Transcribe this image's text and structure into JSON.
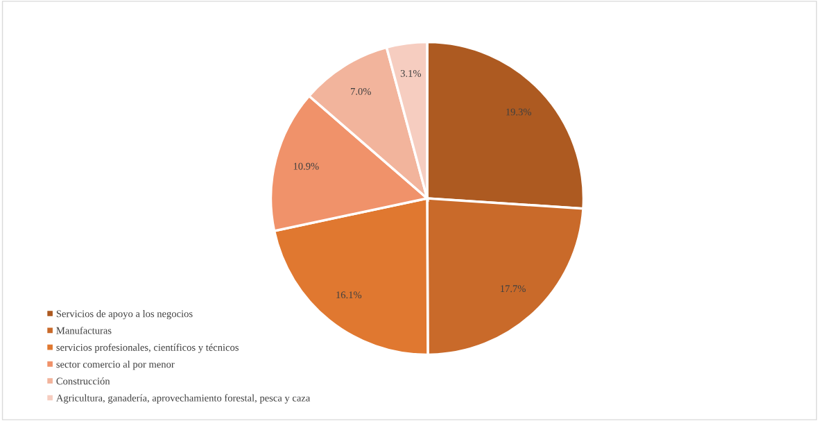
{
  "chart_data": {
    "type": "pie",
    "categories": [
      "Servicios de apoyo a los negocios",
      "Manufacturas",
      "servicios profesionales, científicos y técnicos",
      "sector comercio al por menor",
      "Construcción",
      "Agricultura, ganadería, aprovechamiento forestal, pesca y caza"
    ],
    "values": [
      19.3,
      17.7,
      16.1,
      10.9,
      7.0,
      3.1
    ],
    "value_labels": [
      "19.3%",
      "17.7%",
      "16.1%",
      "10.9%",
      "7.0%",
      "3.1%"
    ],
    "colors": [
      "#ad5a21",
      "#c96a2a",
      "#e07830",
      "#f0926a",
      "#f2b49c",
      "#f6cdc0"
    ],
    "legend": "bottom left"
  }
}
